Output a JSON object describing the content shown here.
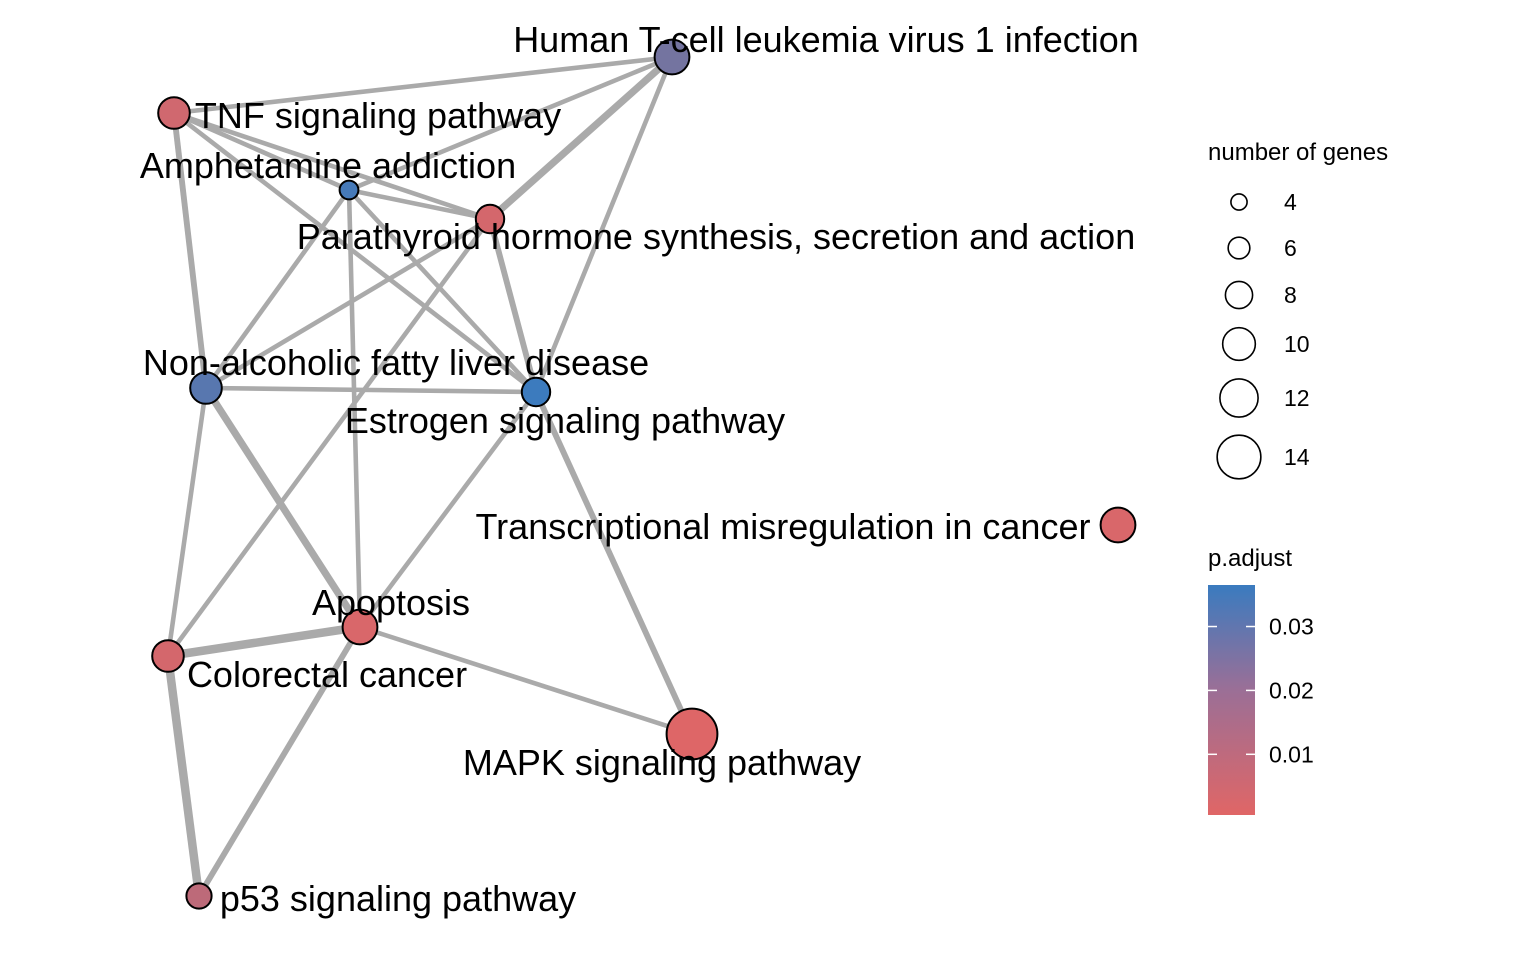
{
  "nodes": [
    {
      "id": "htlv",
      "label": "Human T-cell leukemia virus 1 infection",
      "count": 9,
      "p_adjust": 0.024
    },
    {
      "id": "tnf",
      "label": "TNF signaling pathway",
      "count": 8,
      "p_adjust": 0.004
    },
    {
      "id": "amph",
      "label": "Amphetamine addiction",
      "count": 4,
      "p_adjust": 0.034
    },
    {
      "id": "pth",
      "label": "Parathyroid hormone synthesis, secretion and action",
      "count": 7,
      "p_adjust": 0.003
    },
    {
      "id": "nafld",
      "label": "Non-alcoholic fatty liver disease",
      "count": 8,
      "p_adjust": 0.03
    },
    {
      "id": "estrogen",
      "label": "Estrogen signaling pathway",
      "count": 7,
      "p_adjust": 0.036
    },
    {
      "id": "tmc",
      "label": "Transcriptional misregulation in cancer",
      "count": 9,
      "p_adjust": 0.002
    },
    {
      "id": "apoptosis",
      "label": "Apoptosis",
      "count": 9,
      "p_adjust": 0.002
    },
    {
      "id": "crc",
      "label": "Colorectal cancer",
      "count": 8,
      "p_adjust": 0.003
    },
    {
      "id": "mapk",
      "label": "MAPK signaling pathway",
      "count": 14,
      "p_adjust": 0.001
    },
    {
      "id": "p53",
      "label": "p53 signaling pathway",
      "count": 6,
      "p_adjust": 0.008
    }
  ],
  "edges": [
    {
      "source": "htlv",
      "target": "tnf",
      "weight": 2
    },
    {
      "source": "htlv",
      "target": "amph",
      "weight": 2
    },
    {
      "source": "htlv",
      "target": "pth",
      "weight": 4
    },
    {
      "source": "htlv",
      "target": "estrogen",
      "weight": 2
    },
    {
      "source": "tnf",
      "target": "amph",
      "weight": 2
    },
    {
      "source": "tnf",
      "target": "pth",
      "weight": 2
    },
    {
      "source": "tnf",
      "target": "nafld",
      "weight": 3
    },
    {
      "source": "tnf",
      "target": "estrogen",
      "weight": 2
    },
    {
      "source": "amph",
      "target": "pth",
      "weight": 2
    },
    {
      "source": "amph",
      "target": "nafld",
      "weight": 2
    },
    {
      "source": "amph",
      "target": "estrogen",
      "weight": 2
    },
    {
      "source": "amph",
      "target": "apoptosis",
      "weight": 2
    },
    {
      "source": "pth",
      "target": "nafld",
      "weight": 2
    },
    {
      "source": "pth",
      "target": "estrogen",
      "weight": 3
    },
    {
      "source": "pth",
      "target": "crc",
      "weight": 2
    },
    {
      "source": "nafld",
      "target": "estrogen",
      "weight": 2
    },
    {
      "source": "nafld",
      "target": "apoptosis",
      "weight": 4
    },
    {
      "source": "nafld",
      "target": "crc",
      "weight": 2
    },
    {
      "source": "estrogen",
      "target": "apoptosis",
      "weight": 2
    },
    {
      "source": "estrogen",
      "target": "mapk",
      "weight": 3
    },
    {
      "source": "apoptosis",
      "target": "crc",
      "weight": 5
    },
    {
      "source": "apoptosis",
      "target": "mapk",
      "weight": 2
    },
    {
      "source": "apoptosis",
      "target": "p53",
      "weight": 3
    },
    {
      "source": "crc",
      "target": "p53",
      "weight": 5
    }
  ],
  "legend": {
    "size": {
      "title": "number of genes",
      "items": [
        {
          "value": 4,
          "label": "4"
        },
        {
          "value": 6,
          "label": "6"
        },
        {
          "value": 8,
          "label": "8"
        },
        {
          "value": 10,
          "label": "10"
        },
        {
          "value": 12,
          "label": "12"
        },
        {
          "value": 14,
          "label": "14"
        }
      ]
    },
    "color": {
      "title": "p.adjust",
      "min": 0.0005,
      "max": 0.0365,
      "low_color": "#e06666",
      "high_color": "#3a7bbf",
      "ticks": [
        {
          "value": 0.03,
          "label": "0.03"
        },
        {
          "value": 0.02,
          "label": "0.02"
        },
        {
          "value": 0.01,
          "label": "0.01"
        }
      ]
    }
  },
  "colors": {
    "edge": "#aaaaaa",
    "node_stroke": "#000000"
  }
}
